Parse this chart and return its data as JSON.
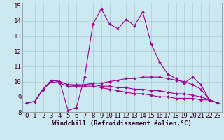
{
  "xlabel": "Windchill (Refroidissement éolien,°C)",
  "xlim": [
    -0.5,
    23.5
  ],
  "ylim": [
    8,
    15.2
  ],
  "yticks": [
    8,
    9,
    10,
    11,
    12,
    13,
    14,
    15
  ],
  "xticks": [
    0,
    1,
    2,
    3,
    4,
    5,
    6,
    7,
    8,
    9,
    10,
    11,
    12,
    13,
    14,
    15,
    16,
    17,
    18,
    19,
    20,
    21,
    22,
    23
  ],
  "bg_color": "#cce8f0",
  "grid_color": "#aaccdd",
  "line_color": "#990099",
  "series": [
    [
      8.6,
      8.7,
      9.5,
      10.1,
      10.0,
      8.1,
      8.3,
      10.3,
      13.8,
      14.8,
      13.8,
      13.5,
      14.1,
      13.7,
      14.6,
      12.5,
      11.3,
      10.5,
      10.2,
      9.9,
      10.3,
      9.8,
      8.8,
      8.6
    ],
    [
      8.6,
      8.7,
      9.5,
      10.0,
      9.9,
      9.7,
      9.7,
      9.8,
      9.9,
      9.9,
      10.0,
      10.1,
      10.2,
      10.2,
      10.3,
      10.3,
      10.3,
      10.2,
      10.1,
      10.0,
      9.8,
      9.5,
      8.8,
      8.6
    ],
    [
      8.6,
      8.7,
      9.5,
      10.1,
      10.0,
      9.8,
      9.8,
      9.8,
      9.8,
      9.7,
      9.7,
      9.6,
      9.6,
      9.5,
      9.5,
      9.4,
      9.4,
      9.3,
      9.2,
      9.2,
      9.1,
      9.0,
      8.8,
      8.6
    ],
    [
      8.6,
      8.7,
      9.5,
      10.1,
      10.0,
      9.8,
      9.7,
      9.7,
      9.7,
      9.6,
      9.5,
      9.4,
      9.3,
      9.2,
      9.2,
      9.1,
      9.0,
      9.0,
      8.9,
      8.9,
      8.9,
      8.8,
      8.8,
      8.6
    ]
  ],
  "marker": "D",
  "markersize": 2.0,
  "linewidth": 0.8,
  "tick_fontsize": 6.5,
  "xlabel_fontsize": 6.5
}
